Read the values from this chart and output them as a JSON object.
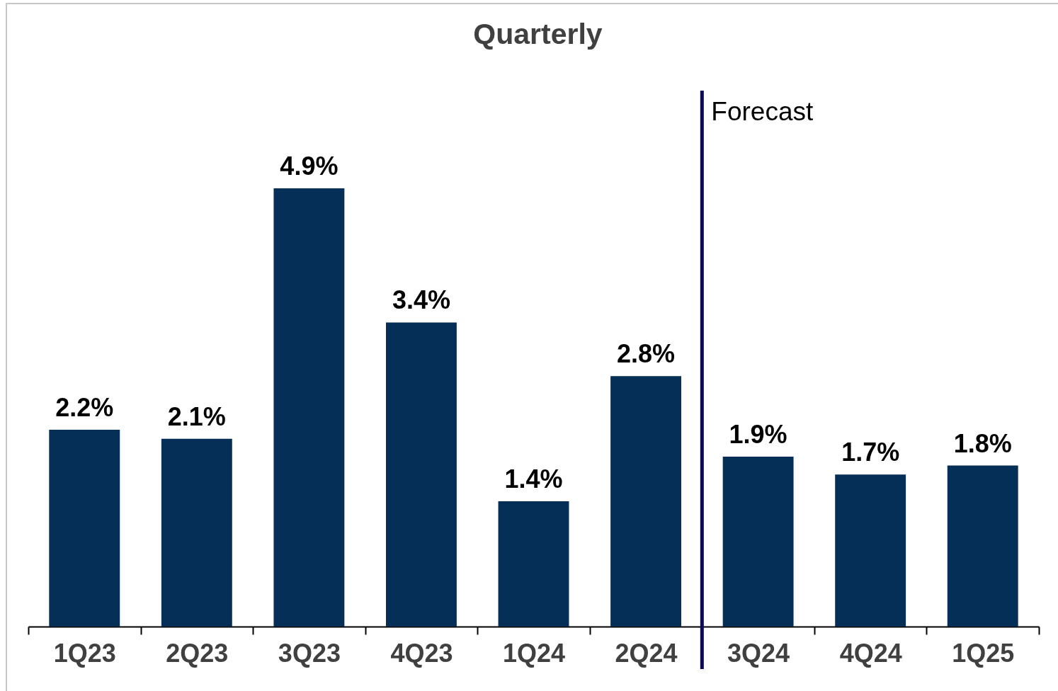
{
  "chart_data": {
    "type": "bar",
    "title": "Quarterly",
    "categories": [
      "1Q23",
      "2Q23",
      "3Q23",
      "4Q23",
      "1Q24",
      "2Q24",
      "3Q24",
      "4Q24",
      "1Q25"
    ],
    "values": [
      2.2,
      2.1,
      4.9,
      3.4,
      1.4,
      2.8,
      1.9,
      1.7,
      1.8
    ],
    "value_labels": [
      "2.2%",
      "2.1%",
      "4.9%",
      "3.4%",
      "1.4%",
      "2.8%",
      "1.9%",
      "1.7%",
      "1.8%"
    ],
    "color": "#062f57",
    "ref_lines": [
      {
        "axis": "x",
        "value": "3Q24",
        "label": "Forecast",
        "color": "#0a0a5c"
      }
    ],
    "tick_labels": "x"
  }
}
